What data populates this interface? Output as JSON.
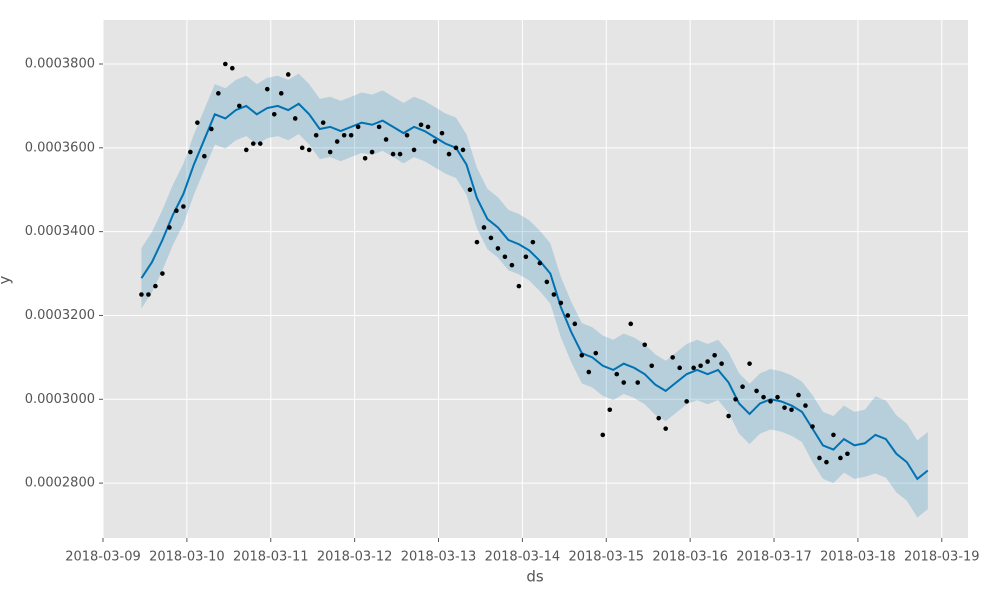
{
  "chart_data": {
    "type": "forecast",
    "xlabel": "ds",
    "ylabel": "y",
    "grid": true,
    "xlim": [
      "2018-03-09 00:00",
      "2018-03-19 07:30"
    ],
    "ylim": [
      0.0002669,
      0.0003905
    ],
    "xticks": [
      "2018-03-09",
      "2018-03-10",
      "2018-03-11",
      "2018-03-12",
      "2018-03-13",
      "2018-03-14",
      "2018-03-15",
      "2018-03-16",
      "2018-03-17",
      "2018-03-18",
      "2018-03-19"
    ],
    "yticks": [
      {
        "value": 0.00028,
        "label": "0.0002800"
      },
      {
        "value": 0.0003,
        "label": "0.0003000"
      },
      {
        "value": 0.00032,
        "label": "0.0003200"
      },
      {
        "value": 0.00034,
        "label": "0.0003400"
      },
      {
        "value": 0.00036,
        "label": "0.0003600"
      },
      {
        "value": 0.00038,
        "label": "0.0003800"
      }
    ],
    "series": [
      {
        "type": "scatter",
        "color": "#000000",
        "x": [
          "2018-03-09 11:00",
          "2018-03-09 13:00",
          "2018-03-09 15:00",
          "2018-03-09 17:00",
          "2018-03-09 19:00",
          "2018-03-09 21:00",
          "2018-03-09 23:00",
          "2018-03-10 01:00",
          "2018-03-10 03:00",
          "2018-03-10 05:00",
          "2018-03-10 07:00",
          "2018-03-10 09:00",
          "2018-03-10 11:00",
          "2018-03-10 13:00",
          "2018-03-10 15:00",
          "2018-03-10 17:00",
          "2018-03-10 19:00",
          "2018-03-10 21:00",
          "2018-03-10 23:00",
          "2018-03-11 01:00",
          "2018-03-11 03:00",
          "2018-03-11 05:00",
          "2018-03-11 07:00",
          "2018-03-11 09:00",
          "2018-03-11 11:00",
          "2018-03-11 13:00",
          "2018-03-11 15:00",
          "2018-03-11 17:00",
          "2018-03-11 19:00",
          "2018-03-11 21:00",
          "2018-03-11 23:00",
          "2018-03-12 01:00",
          "2018-03-12 03:00",
          "2018-03-12 05:00",
          "2018-03-12 07:00",
          "2018-03-12 09:00",
          "2018-03-12 11:00",
          "2018-03-12 13:00",
          "2018-03-12 15:00",
          "2018-03-12 17:00",
          "2018-03-12 19:00",
          "2018-03-12 21:00",
          "2018-03-12 23:00",
          "2018-03-13 01:00",
          "2018-03-13 03:00",
          "2018-03-13 05:00",
          "2018-03-13 07:00",
          "2018-03-13 09:00",
          "2018-03-13 11:00",
          "2018-03-13 13:00",
          "2018-03-13 15:00",
          "2018-03-13 17:00",
          "2018-03-13 19:00",
          "2018-03-13 21:00",
          "2018-03-13 23:00",
          "2018-03-14 01:00",
          "2018-03-14 03:00",
          "2018-03-14 05:00",
          "2018-03-14 07:00",
          "2018-03-14 09:00",
          "2018-03-14 11:00",
          "2018-03-14 13:00",
          "2018-03-14 15:00",
          "2018-03-14 17:00",
          "2018-03-14 19:00",
          "2018-03-14 21:00",
          "2018-03-14 23:00",
          "2018-03-15 01:00",
          "2018-03-15 03:00",
          "2018-03-15 05:00",
          "2018-03-15 07:00",
          "2018-03-15 09:00",
          "2018-03-15 11:00",
          "2018-03-15 13:00",
          "2018-03-15 15:00",
          "2018-03-15 17:00",
          "2018-03-15 19:00",
          "2018-03-15 21:00",
          "2018-03-15 23:00",
          "2018-03-16 01:00",
          "2018-03-16 03:00",
          "2018-03-16 05:00",
          "2018-03-16 07:00",
          "2018-03-16 09:00",
          "2018-03-16 11:00",
          "2018-03-16 13:00",
          "2018-03-16 15:00",
          "2018-03-16 17:00",
          "2018-03-16 19:00",
          "2018-03-16 21:00",
          "2018-03-16 23:00",
          "2018-03-17 01:00",
          "2018-03-17 03:00",
          "2018-03-17 05:00",
          "2018-03-17 07:00",
          "2018-03-17 09:00",
          "2018-03-17 11:00",
          "2018-03-17 13:00",
          "2018-03-17 15:00",
          "2018-03-17 17:00",
          "2018-03-17 19:00",
          "2018-03-17 21:00"
        ],
        "values": [
          0.000325,
          0.000325,
          0.000327,
          0.00033,
          0.000341,
          0.000345,
          0.000346,
          0.000359,
          0.000366,
          0.000358,
          0.0003645,
          0.000373,
          0.00038,
          0.000379,
          0.00037,
          0.0003595,
          0.000361,
          0.000361,
          0.000374,
          0.000368,
          0.000373,
          0.0003775,
          0.000367,
          0.00036,
          0.0003595,
          0.000363,
          0.000366,
          0.000359,
          0.0003615,
          0.000363,
          0.000363,
          0.000365,
          0.0003575,
          0.000359,
          0.000365,
          0.000362,
          0.0003585,
          0.0003585,
          0.000363,
          0.0003595,
          0.0003655,
          0.000365,
          0.0003615,
          0.0003635,
          0.0003585,
          0.00036,
          0.0003595,
          0.00035,
          0.0003375,
          0.000341,
          0.0003385,
          0.000336,
          0.000334,
          0.000332,
          0.000327,
          0.000334,
          0.0003375,
          0.0003325,
          0.000328,
          0.000325,
          0.000323,
          0.00032,
          0.000318,
          0.0003105,
          0.0003065,
          0.000311,
          0.0002915,
          0.0002975,
          0.000306,
          0.000304,
          0.000318,
          0.000304,
          0.000313,
          0.000308,
          0.0002955,
          0.000293,
          0.00031,
          0.0003075,
          0.0002995,
          0.0003075,
          0.000308,
          0.000309,
          0.0003105,
          0.0003085,
          0.000296,
          0.0003,
          0.000303,
          0.0003085,
          0.000302,
          0.0003005,
          0.0002995,
          0.0003005,
          0.000298,
          0.0002975,
          0.000301,
          0.0002985,
          0.0002935,
          0.000286,
          0.000285,
          0.0002915,
          0.000286,
          0.000287
        ]
      },
      {
        "type": "line",
        "color": "#0072B2",
        "x": [
          "2018-03-09 11:00",
          "2018-03-09 14:00",
          "2018-03-09 17:00",
          "2018-03-09 20:00",
          "2018-03-09 23:00",
          "2018-03-10 02:00",
          "2018-03-10 05:00",
          "2018-03-10 08:00",
          "2018-03-10 11:00",
          "2018-03-10 14:00",
          "2018-03-10 17:00",
          "2018-03-10 20:00",
          "2018-03-10 23:00",
          "2018-03-11 02:00",
          "2018-03-11 05:00",
          "2018-03-11 08:00",
          "2018-03-11 11:00",
          "2018-03-11 14:00",
          "2018-03-11 17:00",
          "2018-03-11 20:00",
          "2018-03-11 23:00",
          "2018-03-12 02:00",
          "2018-03-12 05:00",
          "2018-03-12 08:00",
          "2018-03-12 11:00",
          "2018-03-12 14:00",
          "2018-03-12 17:00",
          "2018-03-12 20:00",
          "2018-03-12 23:00",
          "2018-03-13 02:00",
          "2018-03-13 05:00",
          "2018-03-13 08:00",
          "2018-03-13 11:00",
          "2018-03-13 14:00",
          "2018-03-13 17:00",
          "2018-03-13 20:00",
          "2018-03-13 23:00",
          "2018-03-14 02:00",
          "2018-03-14 05:00",
          "2018-03-14 08:00",
          "2018-03-14 11:00",
          "2018-03-14 14:00",
          "2018-03-14 17:00",
          "2018-03-14 20:00",
          "2018-03-14 23:00",
          "2018-03-15 02:00",
          "2018-03-15 05:00",
          "2018-03-15 08:00",
          "2018-03-15 11:00",
          "2018-03-15 14:00",
          "2018-03-15 17:00",
          "2018-03-15 20:00",
          "2018-03-15 23:00",
          "2018-03-16 02:00",
          "2018-03-16 05:00",
          "2018-03-16 08:00",
          "2018-03-16 11:00",
          "2018-03-16 14:00",
          "2018-03-16 17:00",
          "2018-03-16 20:00",
          "2018-03-16 23:00",
          "2018-03-17 02:00",
          "2018-03-17 05:00",
          "2018-03-17 08:00",
          "2018-03-17 11:00",
          "2018-03-17 14:00",
          "2018-03-17 17:00",
          "2018-03-17 20:00",
          "2018-03-17 23:00",
          "2018-03-18 02:00",
          "2018-03-18 05:00",
          "2018-03-18 08:00",
          "2018-03-18 11:00",
          "2018-03-18 14:00",
          "2018-03-18 17:00",
          "2018-03-18 20:00"
        ],
        "values": [
          0.0003289,
          0.0003327,
          0.000338,
          0.000344,
          0.000349,
          0.000356,
          0.000362,
          0.000368,
          0.000367,
          0.000369,
          0.00037,
          0.000368,
          0.0003695,
          0.00037,
          0.000369,
          0.0003705,
          0.000368,
          0.0003645,
          0.000365,
          0.000364,
          0.000365,
          0.000366,
          0.0003655,
          0.0003665,
          0.000365,
          0.0003635,
          0.000365,
          0.000364,
          0.0003625,
          0.000361,
          0.00036,
          0.000356,
          0.000348,
          0.000343,
          0.000341,
          0.000338,
          0.000337,
          0.0003355,
          0.000333,
          0.00033,
          0.000322,
          0.000316,
          0.000311,
          0.00031,
          0.000308,
          0.000307,
          0.0003085,
          0.0003075,
          0.000306,
          0.0003035,
          0.000302,
          0.000304,
          0.000306,
          0.000307,
          0.000306,
          0.000307,
          0.000304,
          0.000299,
          0.0002965,
          0.000299,
          0.0003,
          0.0002995,
          0.0002985,
          0.000297,
          0.000293,
          0.000289,
          0.000288,
          0.0002905,
          0.000289,
          0.0002895,
          0.0002915,
          0.0002905,
          0.000287,
          0.000285,
          0.000281,
          0.000283
        ],
        "lower": [
          0.0003217,
          0.0003255,
          0.0003308,
          0.0003368,
          0.0003418,
          0.0003488,
          0.0003548,
          0.0003608,
          0.0003598,
          0.0003618,
          0.0003628,
          0.0003608,
          0.0003623,
          0.0003628,
          0.0003618,
          0.0003633,
          0.0003608,
          0.0003573,
          0.0003578,
          0.0003568,
          0.0003578,
          0.0003588,
          0.0003583,
          0.0003593,
          0.0003578,
          0.0003563,
          0.0003578,
          0.0003568,
          0.0003553,
          0.0003538,
          0.0003528,
          0.0003488,
          0.0003408,
          0.0003358,
          0.0003338,
          0.0003308,
          0.0003298,
          0.0003283,
          0.0003258,
          0.0003228,
          0.0003148,
          0.0003088,
          0.0003038,
          0.0003028,
          0.0003008,
          0.0002998,
          0.0003013,
          0.0003003,
          0.0002988,
          0.0002963,
          0.0002948,
          0.0002968,
          0.0002988,
          0.0002998,
          0.0002988,
          0.0002998,
          0.0002968,
          0.0002918,
          0.0002893,
          0.0002918,
          0.0002928,
          0.0002923,
          0.0002913,
          0.0002898,
          0.000285,
          0.000281,
          0.00028,
          0.0002825,
          0.000281,
          0.0002815,
          0.0002823,
          0.0002813,
          0.0002778,
          0.0002758,
          0.0002718,
          0.0002738
        ],
        "upper": [
          0.0003361,
          0.0003399,
          0.0003452,
          0.0003512,
          0.0003562,
          0.0003632,
          0.0003692,
          0.0003752,
          0.0003742,
          0.0003762,
          0.0003772,
          0.0003752,
          0.0003767,
          0.0003772,
          0.0003762,
          0.0003777,
          0.0003752,
          0.0003717,
          0.0003722,
          0.0003712,
          0.0003722,
          0.0003732,
          0.0003727,
          0.0003737,
          0.0003722,
          0.0003707,
          0.0003722,
          0.0003712,
          0.0003697,
          0.0003682,
          0.0003672,
          0.0003632,
          0.0003552,
          0.0003502,
          0.0003482,
          0.0003452,
          0.0003442,
          0.0003427,
          0.0003402,
          0.0003372,
          0.0003292,
          0.0003232,
          0.0003182,
          0.0003172,
          0.0003152,
          0.0003142,
          0.0003157,
          0.0003147,
          0.0003132,
          0.0003107,
          0.0003092,
          0.0003112,
          0.0003132,
          0.0003142,
          0.0003132,
          0.0003142,
          0.0003112,
          0.0003062,
          0.0003037,
          0.0003062,
          0.0003072,
          0.0003067,
          0.0003057,
          0.0003042,
          0.000301,
          0.000297,
          0.000296,
          0.0002985,
          0.000297,
          0.0002975,
          0.0003007,
          0.0002997,
          0.0002962,
          0.0002942,
          0.0002902,
          0.0002922
        ]
      }
    ]
  }
}
